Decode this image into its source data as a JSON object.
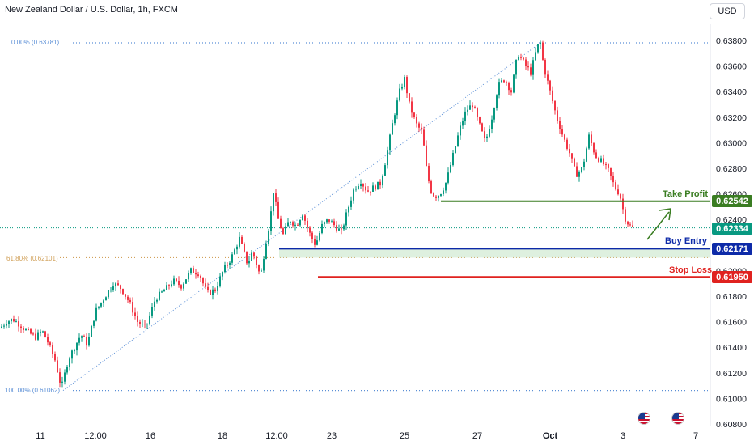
{
  "header": {
    "title": "New Zealand Dollar / U.S. Dollar, 1h, FXCM",
    "currency_button": "USD"
  },
  "chart_data": {
    "type": "candlestick",
    "yaxis_ticks": [
      "0.63800",
      "0.63600",
      "0.63400",
      "0.63200",
      "0.63000",
      "0.62800",
      "0.62600",
      "0.62400",
      "0.62200",
      "0.62000",
      "0.61800",
      "0.61600",
      "0.61400",
      "0.61200",
      "0.61000",
      "0.60800"
    ],
    "ylim": [
      0.608,
      0.6395
    ],
    "xaxis_ticks": [
      "11",
      "12:00",
      "16",
      "18",
      "12:00",
      "23",
      "25",
      "27",
      "Oct",
      "3",
      "7"
    ],
    "fibonacci": [
      {
        "label": "0.00% (0.63781)",
        "price": 0.63781,
        "color": "#5b8fd6"
      },
      {
        "label": "61.80% (0.62101)",
        "price": 0.62101,
        "color": "#d1a15a"
      },
      {
        "label": "100.00% (0.61062)",
        "price": 0.61062,
        "color": "#5b8fd6"
      }
    ],
    "levels": [
      {
        "name": "Take Profit",
        "price_label": "0.62542",
        "price": 0.62542,
        "color": "#3a7d22"
      },
      {
        "name": "Buy Entry",
        "price_label": "0.62171",
        "price": 0.62171,
        "color": "#0d2aa8"
      },
      {
        "name": "Stop Loss",
        "price_label": "0.61950",
        "price": 0.6195,
        "color": "#e0221f"
      }
    ],
    "current_price": {
      "label": "0.62334",
      "price": 0.62334,
      "color": "#089981"
    },
    "path": [
      [
        0,
        0.6155
      ],
      [
        8,
        0.616
      ],
      [
        16,
        0.6162
      ],
      [
        24,
        0.6158
      ],
      [
        34,
        0.6152
      ],
      [
        44,
        0.6148
      ],
      [
        52,
        0.6153
      ],
      [
        60,
        0.6143
      ],
      [
        68,
        0.613
      ],
      [
        76,
        0.6108
      ],
      [
        84,
        0.613
      ],
      [
        92,
        0.614
      ],
      [
        100,
        0.615
      ],
      [
        108,
        0.6142
      ],
      [
        118,
        0.6168
      ],
      [
        128,
        0.6178
      ],
      [
        140,
        0.619
      ],
      [
        150,
        0.6186
      ],
      [
        160,
        0.6175
      ],
      [
        170,
        0.616
      ],
      [
        180,
        0.6155
      ],
      [
        192,
        0.6178
      ],
      [
        204,
        0.6185
      ],
      [
        214,
        0.6192
      ],
      [
        224,
        0.6188
      ],
      [
        236,
        0.62
      ],
      [
        246,
        0.6198
      ],
      [
        256,
        0.6182
      ],
      [
        266,
        0.6185
      ],
      [
        276,
        0.62
      ],
      [
        286,
        0.621
      ],
      [
        296,
        0.6225
      ],
      [
        306,
        0.6205
      ],
      [
        312,
        0.6215
      ],
      [
        322,
        0.6195
      ],
      [
        328,
        0.622
      ],
      [
        334,
        0.624
      ],
      [
        338,
        0.6262
      ],
      [
        344,
        0.624
      ],
      [
        350,
        0.6228
      ],
      [
        358,
        0.624
      ],
      [
        366,
        0.6235
      ],
      [
        374,
        0.6245
      ],
      [
        382,
        0.623
      ],
      [
        390,
        0.622
      ],
      [
        398,
        0.6235
      ],
      [
        406,
        0.624
      ],
      [
        414,
        0.6235
      ],
      [
        422,
        0.623
      ],
      [
        430,
        0.6248
      ],
      [
        438,
        0.6265
      ],
      [
        446,
        0.627
      ],
      [
        454,
        0.6262
      ],
      [
        462,
        0.6265
      ],
      [
        470,
        0.6268
      ],
      [
        478,
        0.629
      ],
      [
        486,
        0.6318
      ],
      [
        494,
        0.634
      ],
      [
        500,
        0.635
      ],
      [
        506,
        0.633
      ],
      [
        514,
        0.6315
      ],
      [
        522,
        0.6308
      ],
      [
        528,
        0.6275
      ],
      [
        534,
        0.626
      ],
      [
        540,
        0.6258
      ],
      [
        546,
        0.6262
      ],
      [
        552,
        0.627
      ],
      [
        560,
        0.629
      ],
      [
        568,
        0.631
      ],
      [
        576,
        0.6325
      ],
      [
        584,
        0.633
      ],
      [
        592,
        0.6315
      ],
      [
        600,
        0.63
      ],
      [
        608,
        0.632
      ],
      [
        616,
        0.6345
      ],
      [
        624,
        0.635
      ],
      [
        632,
        0.634
      ],
      [
        640,
        0.637
      ],
      [
        648,
        0.6362
      ],
      [
        656,
        0.6355
      ],
      [
        664,
        0.6375
      ],
      [
        668,
        0.6378
      ],
      [
        672,
        0.636
      ],
      [
        680,
        0.634
      ],
      [
        688,
        0.632
      ],
      [
        696,
        0.6305
      ],
      [
        704,
        0.6292
      ],
      [
        712,
        0.6275
      ],
      [
        720,
        0.628
      ],
      [
        728,
        0.6305
      ],
      [
        736,
        0.629
      ],
      [
        744,
        0.6285
      ],
      [
        752,
        0.6278
      ],
      [
        760,
        0.6265
      ],
      [
        766,
        0.626
      ],
      [
        772,
        0.6242
      ],
      [
        778,
        0.6235
      ],
      [
        784,
        0.6233
      ]
    ]
  }
}
